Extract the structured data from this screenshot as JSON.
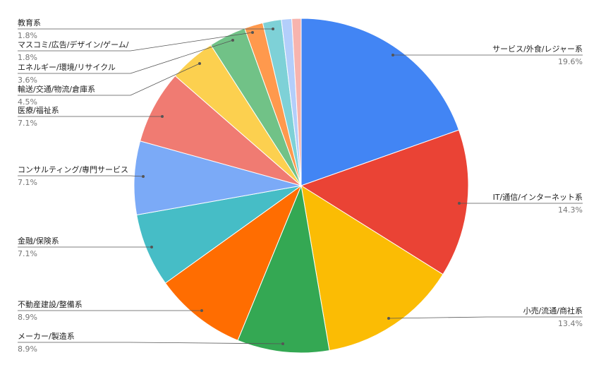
{
  "chart_data": {
    "type": "pie",
    "categories": [
      "サービス/外食/レジャー系",
      "IT/通信/インターネット系",
      "小売/流通/商社系",
      "メーカー/製造系",
      "不動産建設/整備系",
      "金融/保険系",
      "コンサルティング/専門サービス",
      "医療/福祉系",
      "輸送/交通/物流/倉庫系",
      "エネルギー/環境/リサイクル",
      "マスコミ/広告/デザイン/ゲーム/",
      "教育系",
      null,
      null
    ],
    "values": [
      19.6,
      14.3,
      13.4,
      8.9,
      8.9,
      7.1,
      7.1,
      7.1,
      4.5,
      3.6,
      1.8,
      1.8,
      1.0,
      0.9
    ],
    "value_labels": [
      "19.6%",
      "14.3%",
      "13.4%",
      "8.9%",
      "8.9%",
      "7.1%",
      "7.1%",
      "7.1%",
      "4.5%",
      "3.6%",
      "1.8%",
      "1.8%",
      null,
      null
    ],
    "colors": [
      "#4285f4",
      "#ea4335",
      "#fbbc04",
      "#34a853",
      "#ff6d01",
      "#46bdc6",
      "#7baaf7",
      "#f07b72",
      "#fcd04f",
      "#71c287",
      "#ff994d",
      "#7ed1d7",
      "#b3cefb",
      "#f7b4ae"
    ]
  }
}
